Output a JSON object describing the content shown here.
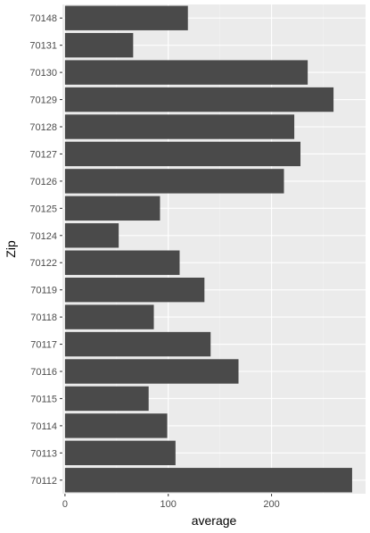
{
  "chart_data": {
    "type": "bar",
    "orientation": "horizontal",
    "xlabel": "average",
    "ylabel": "Zip",
    "categories": [
      "70148",
      "70131",
      "70130",
      "70129",
      "70128",
      "70127",
      "70126",
      "70125",
      "70124",
      "70122",
      "70119",
      "70118",
      "70117",
      "70116",
      "70115",
      "70114",
      "70113",
      "70112"
    ],
    "values": [
      119,
      66,
      235,
      260,
      222,
      228,
      212,
      92,
      52,
      111,
      135,
      86,
      141,
      168,
      81,
      99,
      107,
      278
    ],
    "x_ticks": [
      0,
      100,
      200
    ],
    "xlim": [
      -2.5,
      291
    ],
    "grid": true,
    "colors": {
      "panel": "#ebebeb",
      "grid_major": "#ffffff",
      "bar": "#4a4a4a",
      "tick_text": "#4d4d4d",
      "axis_title": "#000000"
    }
  }
}
